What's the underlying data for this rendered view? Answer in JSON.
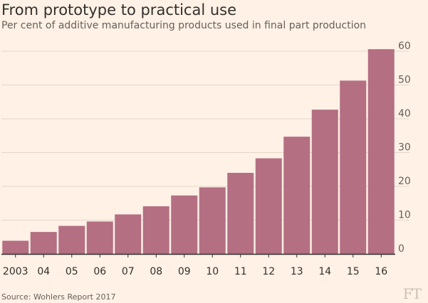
{
  "title": "From prototype to practical use",
  "subtitle": "Per cent of additive manufacturing products used in final part production",
  "source": "Source: Wohlers Report 2017",
  "logo_text": "FT",
  "colors": {
    "bar": "#b46f83",
    "grid": "#e4d6cb",
    "axis": "#33302e",
    "tick_text": "#66605c",
    "background": "#fff1e5"
  },
  "chart_data": {
    "type": "bar",
    "categories": [
      "2003",
      "04",
      "05",
      "06",
      "07",
      "08",
      "09",
      "10",
      "11",
      "12",
      "13",
      "14",
      "15",
      "16"
    ],
    "values": [
      3.9,
      6.5,
      8.3,
      9.6,
      11.7,
      14.1,
      17.3,
      19.7,
      24.0,
      28.3,
      34.7,
      42.7,
      51.3,
      60.6
    ],
    "title": "From prototype to practical use",
    "subtitle": "Per cent of additive manufacturing products used in final part production",
    "xlabel": "",
    "ylabel": "",
    "ylim": [
      0,
      60
    ],
    "yticks": [
      0,
      10,
      20,
      30,
      40,
      50,
      60
    ],
    "y_axis_side": "right",
    "grid": true,
    "legend": "none"
  }
}
